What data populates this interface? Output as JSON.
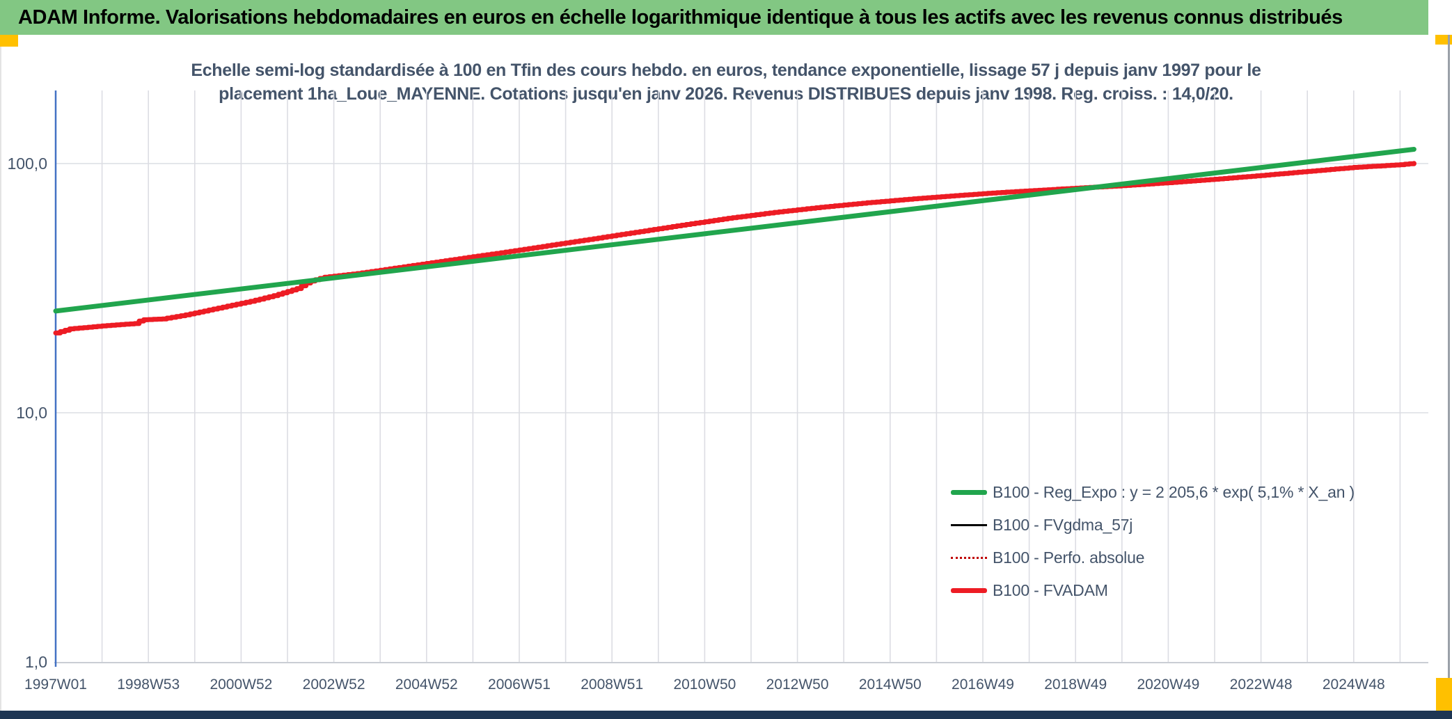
{
  "banner": {
    "title": "ADAM Informe. Valorisations hebdomadaires en euros en échelle logarithmique identique à tous les actifs avec les revenus connus distribués"
  },
  "title": {
    "line1": "Echelle semi-log standardisée à 100 en Tfin des cours hebdo. en euros, tendance exponentielle, lissage 57 j depuis janv 1997 pour le",
    "line2": "placement 1ha_Loue_MAYENNE. Cotations jusqu'en janv 2026. Revenus DISTRIBUES depuis janv 1998. Reg. croiss. : 14,0/20."
  },
  "colors": {
    "banner_bg": "#82C783",
    "accent_amber": "#FFC000",
    "bottom_bar_navy": "#1d3553",
    "axis_blue": "#4472C4",
    "gridline": "#DCDDE3",
    "text_slate": "#44546A",
    "series_green": "#21A54D",
    "series_red": "#ED1C24",
    "series_dotted_red": "#C00000",
    "series_black": "#000000"
  },
  "chart_data": {
    "type": "line",
    "title": "Echelle semi-log standardisée à 100 en Tfin des cours hebdo. en euros, tendance exponentielle, lissage 57 j depuis janv 1997 pour le placement 1ha_Loue_MAYENNE. Cotations jusqu'en janv 2026. Revenus DISTRIBUES depuis janv 1998. Reg. croiss. : 14,0/20.",
    "legend_position": "lower-right",
    "grid": "vertical gridlines every year, horizontal gridlines at log decades",
    "y_axis": {
      "scale": "log10",
      "range": [
        1,
        200
      ],
      "ticks": [
        {
          "label": "100,0",
          "value": 100
        },
        {
          "label": "10,0",
          "value": 10
        },
        {
          "label": "1,0",
          "value": 1
        }
      ]
    },
    "x_axis": {
      "unit": "ISO week (hebdomadaire)",
      "start": "1997W01",
      "end": "janv 2026",
      "tick_interval": "2 years",
      "tick_labels": [
        "1997W01",
        "1998W53",
        "2000W52",
        "2002W52",
        "2004W52",
        "2006W51",
        "2008W51",
        "2010W50",
        "2012W50",
        "2014W50",
        "2016W49",
        "2018W49",
        "2020W49",
        "2022W48",
        "2024W48"
      ]
    },
    "series": [
      {
        "name": "B100 - Reg_Expo : y = 2 205,6 * exp( 5,1% *  X_an )",
        "color": "#21A54D",
        "style": "solid",
        "width": 7,
        "model": {
          "type": "exponential",
          "value_at_1997": 25.6,
          "annual_growth_rate": 0.051,
          "t_start_years": 0,
          "t_end_years": 29.3,
          "value_at_end": 114
        }
      },
      {
        "name": "B100 - FVgdma_57j",
        "color": "#000000",
        "style": "solid",
        "width": 2.5,
        "note": "coincides with FVADAM, hidden beneath it"
      },
      {
        "name": "B100 - Perfo. absolue",
        "color": "#C00000",
        "style": "dotted",
        "width": 2,
        "note": "coincides with FVADAM, hidden beneath it"
      },
      {
        "name": "B100 - FVADAM",
        "color": "#ED1C24",
        "style": "stepped",
        "width": 7,
        "points": {
          "t_years_since_1997": [
            0,
            0.3,
            1,
            1.7,
            1.85,
            2.3,
            2.8,
            3.2,
            3.7,
            4.2,
            4.7,
            5.2,
            5.45,
            5.8,
            6.5,
            7.5,
            8.5,
            9.5,
            10.5,
            11.5,
            12.5,
            13.5,
            14.5,
            15.5,
            16.5,
            17.5,
            18.5,
            19.5,
            20.5,
            21.8,
            23,
            24,
            25,
            26,
            27,
            28,
            29,
            29.3
          ],
          "values": [
            20.9,
            21.7,
            22.3,
            22.8,
            23.6,
            23.8,
            24.7,
            25.6,
            26.8,
            28.0,
            29.5,
            31.5,
            33.6,
            35.0,
            36.2,
            38.5,
            41.0,
            43.6,
            46.5,
            49.6,
            53.0,
            56.6,
            60.3,
            63.7,
            66.8,
            69.6,
            72.2,
            74.6,
            76.8,
            79.3,
            81.5,
            83.8,
            86.5,
            89.6,
            93.0,
            96.5,
            99.0,
            100.2
          ]
        }
      }
    ]
  }
}
